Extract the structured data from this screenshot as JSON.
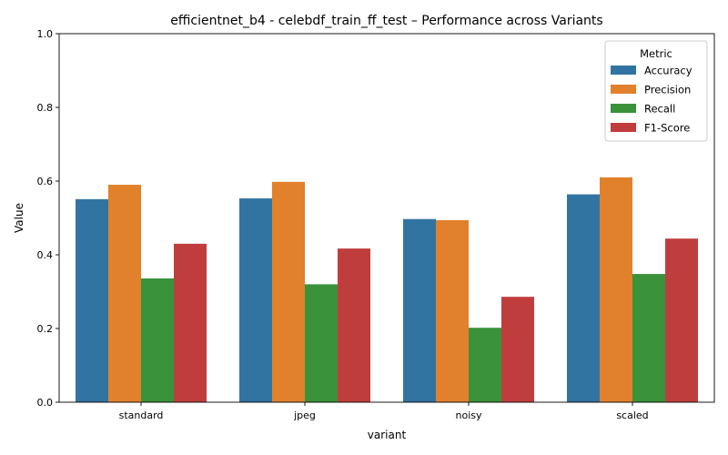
{
  "chart_data": {
    "type": "bar",
    "title": "efficientnet_b4 - celebdf_train_ff_test – Performance across Variants",
    "xlabel": "variant",
    "ylabel": "Value",
    "ylim": [
      0,
      1.0
    ],
    "yticks": [
      "0.0",
      "0.2",
      "0.4",
      "0.6",
      "0.8",
      "1.0"
    ],
    "ytick_values": [
      0,
      0.2,
      0.4,
      0.6,
      0.8,
      1.0
    ],
    "categories": [
      "standard",
      "jpeg",
      "noisy",
      "scaled"
    ],
    "series": [
      {
        "name": "Accuracy",
        "color": "#3274a1",
        "values": [
          0.551,
          0.553,
          0.497,
          0.564
        ]
      },
      {
        "name": "Precision",
        "color": "#e1812c",
        "values": [
          0.59,
          0.598,
          0.494,
          0.61
        ]
      },
      {
        "name": "Recall",
        "color": "#3a923a",
        "values": [
          0.336,
          0.32,
          0.202,
          0.348
        ]
      },
      {
        "name": "F1-Score",
        "color": "#c03d3e",
        "values": [
          0.43,
          0.417,
          0.286,
          0.444
        ]
      }
    ],
    "legend": {
      "title": "Metric",
      "placement": "top-right"
    },
    "grid": false
  }
}
